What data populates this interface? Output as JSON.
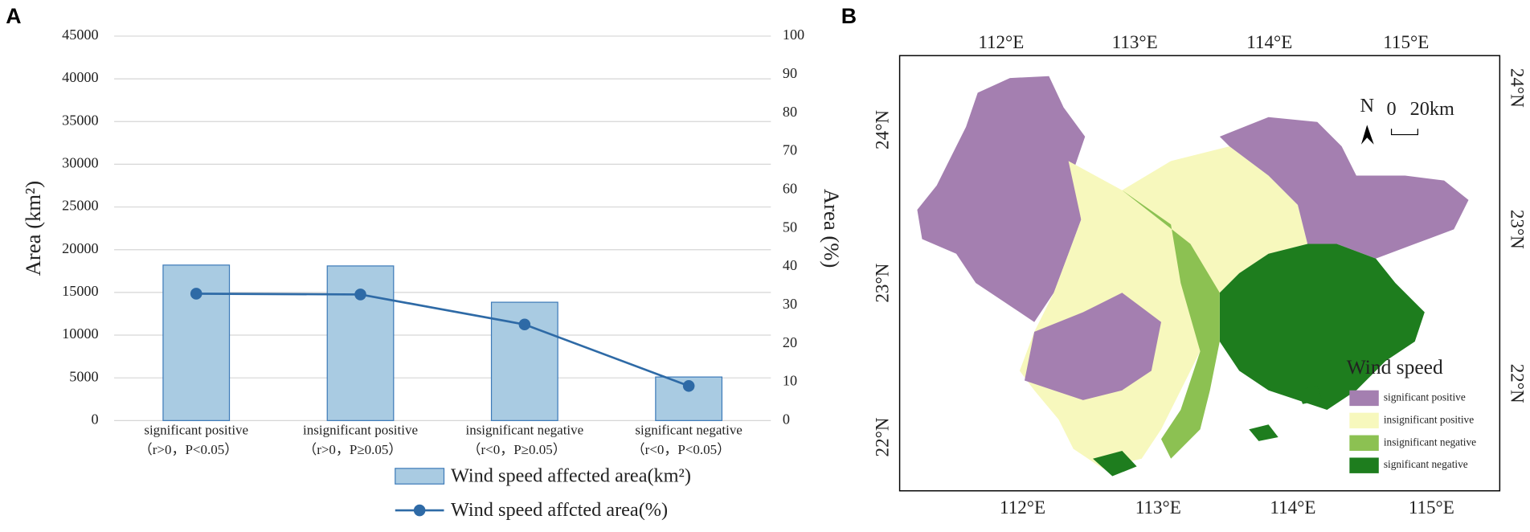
{
  "chart_data": {
    "type": "bar",
    "panel_label": "A",
    "categories": [
      "significant positive",
      "insignificant positive",
      "insignificant negative",
      "significant negative"
    ],
    "category_conditions": [
      "（r>0，P<0.05）",
      "（r>0，P≥0.05）",
      "（r<0，P≥0.05）",
      "（r<0，P<0.05）"
    ],
    "ylabel": "Area (km²)",
    "y2label": "Area (%)",
    "ylim": [
      0,
      45000
    ],
    "yticks": [
      0,
      5000,
      10000,
      15000,
      20000,
      25000,
      30000,
      35000,
      40000,
      45000
    ],
    "y2lim": [
      0,
      100
    ],
    "y2ticks": [
      0,
      10,
      20,
      30,
      40,
      50,
      60,
      70,
      80,
      90,
      100
    ],
    "grid": true,
    "legend": "bottom",
    "series": [
      {
        "name": "Wind speed affected area(km²)",
        "type": "bar",
        "color": "#a9cbe2",
        "values": [
          18200,
          18100,
          13850,
          5100
        ]
      },
      {
        "name": "Wind speed affcted area(%)",
        "type": "line",
        "axis": "y2",
        "color": "#2e6aa6",
        "values": [
          33,
          32.8,
          25,
          9
        ]
      }
    ]
  },
  "map": {
    "panel_label": "B",
    "top_lon": [
      "112°E",
      "113°E",
      "114°E",
      "115°E"
    ],
    "bottom_lon": [
      "112°E",
      "113°E",
      "114°E",
      "115°E"
    ],
    "left_lat": [
      "24°N",
      "23°N",
      "22°N"
    ],
    "right_lat": [
      "24°N",
      "23°N",
      "22°N"
    ],
    "north": "N",
    "scale_start": "0",
    "scale_end": "20km",
    "legend_title": "Wind speed",
    "legend": [
      {
        "label": "significant positive",
        "color": "#a47fb0"
      },
      {
        "label": "insignificant positive",
        "color": "#f7f8bd"
      },
      {
        "label": "insignificant negative",
        "color": "#8cc152"
      },
      {
        "label": "significant negative",
        "color": "#1e7d1e"
      }
    ]
  }
}
